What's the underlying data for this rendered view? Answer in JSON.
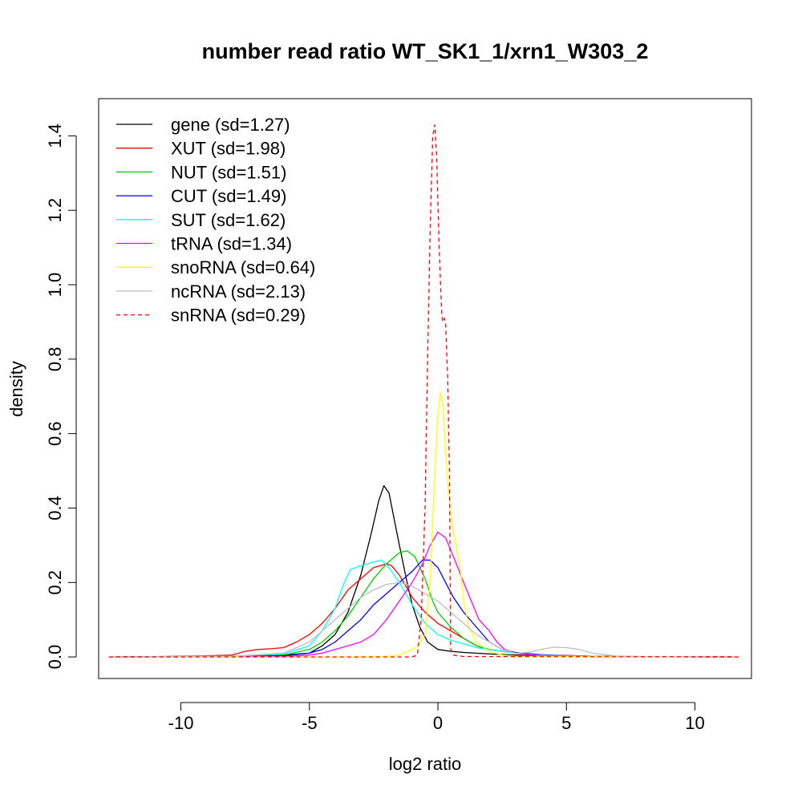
{
  "chart_data": {
    "type": "line",
    "title": "number read ratio WT_SK1_1/xrn1_W303_2",
    "xlabel": "log2 ratio",
    "ylabel": "density",
    "xlim": [
      -13.2,
      12.2
    ],
    "ylim": [
      -0.058,
      1.5
    ],
    "xticks": [
      -10,
      -5,
      0,
      5,
      10
    ],
    "yticks": [
      0.0,
      0.2,
      0.4,
      0.6,
      0.8,
      1.0,
      1.2,
      1.4
    ],
    "legend_position": "top-left",
    "series": [
      {
        "name": "gene (sd=1.27)",
        "color": "#000000",
        "dash": false,
        "points": [
          [
            -12.8,
            0
          ],
          [
            -8,
            0.002
          ],
          [
            -6,
            0.005
          ],
          [
            -5,
            0.01
          ],
          [
            -4.5,
            0.03
          ],
          [
            -4,
            0.06
          ],
          [
            -3.5,
            0.12
          ],
          [
            -3,
            0.22
          ],
          [
            -2.6,
            0.33
          ],
          [
            -2.3,
            0.42
          ],
          [
            -2.1,
            0.46
          ],
          [
            -1.9,
            0.44
          ],
          [
            -1.7,
            0.37
          ],
          [
            -1.5,
            0.3
          ],
          [
            -1.2,
            0.2
          ],
          [
            -1,
            0.14
          ],
          [
            -0.7,
            0.08
          ],
          [
            -0.4,
            0.04
          ],
          [
            0,
            0.02
          ],
          [
            0.5,
            0.015
          ],
          [
            1,
            0.012
          ],
          [
            2,
            0.008
          ],
          [
            3,
            0.005
          ],
          [
            4,
            0.003
          ],
          [
            5,
            0.002
          ],
          [
            7,
            0.001
          ],
          [
            11.7,
            0
          ]
        ]
      },
      {
        "name": "XUT (sd=1.98)",
        "color": "#ff0000",
        "dash": false,
        "points": [
          [
            -12.8,
            0
          ],
          [
            -11,
            0.001
          ],
          [
            -9,
            0.003
          ],
          [
            -8,
            0.005
          ],
          [
            -7.5,
            0.015
          ],
          [
            -7,
            0.02
          ],
          [
            -6.5,
            0.022
          ],
          [
            -6,
            0.025
          ],
          [
            -5.5,
            0.04
          ],
          [
            -5,
            0.06
          ],
          [
            -4.5,
            0.09
          ],
          [
            -4,
            0.13
          ],
          [
            -3.5,
            0.18
          ],
          [
            -3,
            0.21
          ],
          [
            -2.5,
            0.24
          ],
          [
            -2,
            0.25
          ],
          [
            -1.8,
            0.245
          ],
          [
            -1.5,
            0.22
          ],
          [
            -1,
            0.16
          ],
          [
            -0.5,
            0.12
          ],
          [
            0,
            0.09
          ],
          [
            0.5,
            0.07
          ],
          [
            1,
            0.05
          ],
          [
            1.5,
            0.03
          ],
          [
            2,
            0.02
          ],
          [
            3,
            0.01
          ],
          [
            4,
            0.005
          ],
          [
            5,
            0.004
          ],
          [
            6,
            0.002
          ],
          [
            8,
            0.001
          ],
          [
            11.7,
            0
          ]
        ]
      },
      {
        "name": "NUT (sd=1.51)",
        "color": "#00cc00",
        "dash": false,
        "points": [
          [
            -12.8,
            0
          ],
          [
            -8,
            0.001
          ],
          [
            -6,
            0.005
          ],
          [
            -5,
            0.02
          ],
          [
            -4.5,
            0.04
          ],
          [
            -4,
            0.07
          ],
          [
            -3.5,
            0.11
          ],
          [
            -3,
            0.16
          ],
          [
            -2.5,
            0.21
          ],
          [
            -2,
            0.25
          ],
          [
            -1.5,
            0.28
          ],
          [
            -1.2,
            0.285
          ],
          [
            -0.9,
            0.27
          ],
          [
            -0.5,
            0.21
          ],
          [
            -0.2,
            0.15
          ],
          [
            0,
            0.12
          ],
          [
            0.5,
            0.08
          ],
          [
            1,
            0.05
          ],
          [
            1.5,
            0.03
          ],
          [
            2,
            0.02
          ],
          [
            3,
            0.01
          ],
          [
            4,
            0.005
          ],
          [
            5,
            0.002
          ],
          [
            7,
            0.001
          ],
          [
            11.7,
            0
          ]
        ]
      },
      {
        "name": "CUT (sd=1.49)",
        "color": "#0000ff",
        "dash": false,
        "points": [
          [
            -12.8,
            0
          ],
          [
            -8,
            0.001
          ],
          [
            -6,
            0.003
          ],
          [
            -5,
            0.01
          ],
          [
            -4.5,
            0.02
          ],
          [
            -4,
            0.04
          ],
          [
            -3.5,
            0.07
          ],
          [
            -3,
            0.1
          ],
          [
            -2.5,
            0.14
          ],
          [
            -2,
            0.17
          ],
          [
            -1.5,
            0.2
          ],
          [
            -1,
            0.23
          ],
          [
            -0.6,
            0.26
          ],
          [
            -0.3,
            0.26
          ],
          [
            0,
            0.24
          ],
          [
            0.3,
            0.2
          ],
          [
            0.6,
            0.16
          ],
          [
            1,
            0.12
          ],
          [
            1.5,
            0.08
          ],
          [
            2,
            0.04
          ],
          [
            2.5,
            0.02
          ],
          [
            3,
            0.012
          ],
          [
            4,
            0.006
          ],
          [
            5,
            0.003
          ],
          [
            7,
            0.001
          ],
          [
            11.7,
            0
          ]
        ]
      },
      {
        "name": "SUT (sd=1.62)",
        "color": "#00ffff",
        "dash": false,
        "points": [
          [
            -12.8,
            0
          ],
          [
            -8,
            0.002
          ],
          [
            -6,
            0.008
          ],
          [
            -5,
            0.03
          ],
          [
            -4.5,
            0.07
          ],
          [
            -4,
            0.13
          ],
          [
            -3.7,
            0.19
          ],
          [
            -3.4,
            0.235
          ],
          [
            -3,
            0.245
          ],
          [
            -2.5,
            0.255
          ],
          [
            -2.2,
            0.26
          ],
          [
            -1.9,
            0.24
          ],
          [
            -1.5,
            0.2
          ],
          [
            -1,
            0.14
          ],
          [
            -0.5,
            0.09
          ],
          [
            0,
            0.06
          ],
          [
            0.5,
            0.045
          ],
          [
            1,
            0.035
          ],
          [
            1.5,
            0.025
          ],
          [
            2,
            0.02
          ],
          [
            3,
            0.01
          ],
          [
            4,
            0.005
          ],
          [
            5,
            0.003
          ],
          [
            7,
            0.001
          ],
          [
            11.7,
            0
          ]
        ]
      },
      {
        "name": "tRNA (sd=1.34)",
        "color": "#ff00ff",
        "dash": false,
        "points": [
          [
            -12.8,
            0
          ],
          [
            -6,
            0.001
          ],
          [
            -5,
            0.005
          ],
          [
            -4.5,
            0.01
          ],
          [
            -4,
            0.02
          ],
          [
            -3.5,
            0.03
          ],
          [
            -3,
            0.04
          ],
          [
            -2.5,
            0.06
          ],
          [
            -2,
            0.1
          ],
          [
            -1.5,
            0.15
          ],
          [
            -1,
            0.2
          ],
          [
            -0.6,
            0.25
          ],
          [
            -0.3,
            0.3
          ],
          [
            0,
            0.335
          ],
          [
            0.3,
            0.32
          ],
          [
            0.6,
            0.27
          ],
          [
            1,
            0.2
          ],
          [
            1.3,
            0.15
          ],
          [
            1.6,
            0.1
          ],
          [
            2,
            0.07
          ],
          [
            2.3,
            0.04
          ],
          [
            2.6,
            0.02
          ],
          [
            3,
            0.01
          ],
          [
            4,
            0.004
          ],
          [
            6,
            0.001
          ],
          [
            11.7,
            0
          ]
        ]
      },
      {
        "name": "snoRNA (sd=0.64)",
        "color": "#ffff00",
        "dash": false,
        "points": [
          [
            -12.8,
            0
          ],
          [
            -3,
            0
          ],
          [
            -2,
            0.001
          ],
          [
            -1.5,
            0.005
          ],
          [
            -1,
            0.02
          ],
          [
            -0.8,
            0.03
          ],
          [
            -0.5,
            0.06
          ],
          [
            -0.3,
            0.2
          ],
          [
            -0.15,
            0.45
          ],
          [
            0,
            0.65
          ],
          [
            0.1,
            0.71
          ],
          [
            0.2,
            0.68
          ],
          [
            0.35,
            0.5
          ],
          [
            0.5,
            0.38
          ],
          [
            0.7,
            0.3
          ],
          [
            0.9,
            0.22
          ],
          [
            1,
            0.15
          ],
          [
            1.2,
            0.08
          ],
          [
            1.5,
            0.04
          ],
          [
            2,
            0.015
          ],
          [
            2.5,
            0.005
          ],
          [
            3,
            0.002
          ],
          [
            11.7,
            0
          ]
        ]
      },
      {
        "name": "ncRNA (sd=2.13)",
        "color": "#bebebe",
        "dash": false,
        "points": [
          [
            -12.8,
            0
          ],
          [
            -8,
            0.002
          ],
          [
            -6,
            0.01
          ],
          [
            -5,
            0.04
          ],
          [
            -4.5,
            0.07
          ],
          [
            -4,
            0.1
          ],
          [
            -3.5,
            0.13
          ],
          [
            -3,
            0.16
          ],
          [
            -2.5,
            0.18
          ],
          [
            -2,
            0.195
          ],
          [
            -1.5,
            0.2
          ],
          [
            -1,
            0.19
          ],
          [
            -0.5,
            0.17
          ],
          [
            0,
            0.15
          ],
          [
            0.5,
            0.12
          ],
          [
            1,
            0.09
          ],
          [
            1.5,
            0.06
          ],
          [
            2,
            0.04
          ],
          [
            2.5,
            0.02
          ],
          [
            3,
            0.01
          ],
          [
            3.5,
            0.012
          ],
          [
            4,
            0.02
          ],
          [
            4.5,
            0.026
          ],
          [
            5,
            0.025
          ],
          [
            5.5,
            0.02
          ],
          [
            6,
            0.01
          ],
          [
            7,
            0.002
          ],
          [
            8,
            0.001
          ],
          [
            11.7,
            0
          ]
        ]
      },
      {
        "name": "snRNA (sd=0.29)",
        "color": "#ff0000",
        "dash": true,
        "points": [
          [
            -12.8,
            0
          ],
          [
            -1,
            0
          ],
          [
            -0.8,
            0.005
          ],
          [
            -0.65,
            0.1
          ],
          [
            -0.5,
            0.4
          ],
          [
            -0.4,
            0.8
          ],
          [
            -0.3,
            1.15
          ],
          [
            -0.2,
            1.4
          ],
          [
            -0.12,
            1.43
          ],
          [
            -0.05,
            1.35
          ],
          [
            0.05,
            1.1
          ],
          [
            0.15,
            0.92
          ],
          [
            0.2,
            0.9
          ],
          [
            0.25,
            0.91
          ],
          [
            0.3,
            0.9
          ],
          [
            0.38,
            0.75
          ],
          [
            0.45,
            0.5
          ],
          [
            0.5,
            0.02
          ],
          [
            0.6,
            0.005
          ],
          [
            1,
            0.001
          ],
          [
            11.7,
            0
          ]
        ]
      }
    ]
  }
}
